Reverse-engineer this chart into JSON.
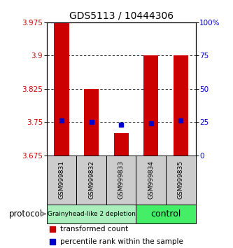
{
  "title": "GDS5113 / 10444306",
  "samples": [
    "GSM999831",
    "GSM999832",
    "GSM999833",
    "GSM999834",
    "GSM999835"
  ],
  "transformed_counts": [
    3.975,
    3.825,
    3.725,
    3.9,
    3.9
  ],
  "percentile_ranks": [
    26,
    25,
    23,
    24,
    26
  ],
  "bar_bottom": 3.675,
  "ylim": [
    3.675,
    3.975
  ],
  "yticks_left": [
    3.675,
    3.75,
    3.825,
    3.9,
    3.975
  ],
  "yticks_right": [
    0,
    25,
    50,
    75,
    100
  ],
  "yticks_right_labels": [
    "0",
    "25",
    "50",
    "75",
    "100%"
  ],
  "bar_color": "#cc0000",
  "dot_color": "#0000cc",
  "grid_color": "#000000",
  "groups": [
    {
      "label": "Grainyhead-like 2 depletion",
      "samples": [
        0,
        1,
        2
      ],
      "color": "#aaeebb",
      "text_size": 6.5
    },
    {
      "label": "control",
      "samples": [
        3,
        4
      ],
      "color": "#44ee66",
      "text_size": 9
    }
  ],
  "sample_box_color": "#cccccc",
  "protocol_label": "protocol",
  "legend_red_label": "transformed count",
  "legend_blue_label": "percentile rank within the sample",
  "tick_label_color_left": "#cc0000",
  "tick_label_color_right": "#0000cc",
  "bar_width": 0.5
}
